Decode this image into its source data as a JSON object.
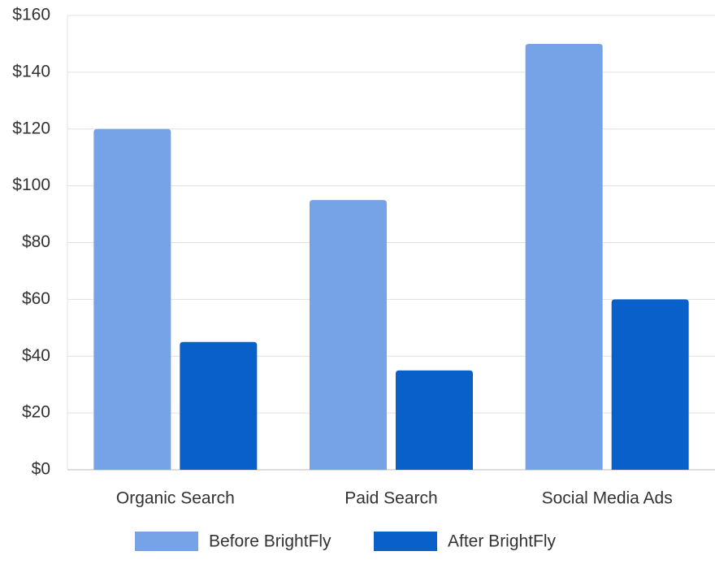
{
  "chart_data": {
    "type": "bar",
    "categories": [
      "Organic Search",
      "Paid Search",
      "Social Media Ads"
    ],
    "series": [
      {
        "name": "Before BrightFly",
        "color": "#76a3e8",
        "values": [
          120,
          95,
          150
        ]
      },
      {
        "name": "After BrightFly",
        "color": "#0a60c9",
        "values": [
          45,
          35,
          60
        ]
      }
    ],
    "ylim": [
      0,
      160
    ],
    "yticks": [
      {
        "value": 0,
        "label": "$0"
      },
      {
        "value": 20,
        "label": "$20"
      },
      {
        "value": 40,
        "label": "$40"
      },
      {
        "value": 60,
        "label": "$60"
      },
      {
        "value": 80,
        "label": "$80"
      },
      {
        "value": 100,
        "label": "$100"
      },
      {
        "value": 120,
        "label": "$120"
      },
      {
        "value": 140,
        "label": "$140"
      },
      {
        "value": 160,
        "label": "$160"
      }
    ],
    "grid": true,
    "legend": "bottom"
  }
}
